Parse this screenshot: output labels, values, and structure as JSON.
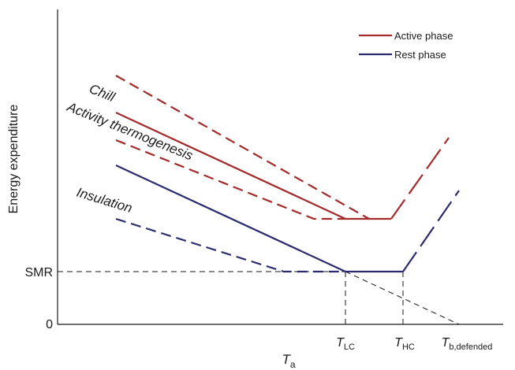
{
  "axes": {
    "ylabel": "Energy expenditure",
    "xlabel_main": "T",
    "xlabel_sub": "a",
    "y_ticks": [
      "SMR",
      "0"
    ],
    "x_ticks": [
      {
        "main": "T",
        "sub": "LC"
      },
      {
        "main": "T",
        "sub": "HC"
      },
      {
        "main": "T",
        "sub": "b,defended"
      }
    ]
  },
  "legend": {
    "items": [
      {
        "label": "Active phase",
        "color": "#a52a2a"
      },
      {
        "label": "Rest phase",
        "color": "#2b2b6e"
      }
    ]
  },
  "annotations": {
    "chill": "Chill",
    "activity": "Activity thermogenesis",
    "insulation": "Insulation"
  },
  "colors": {
    "active": "#a52a2a",
    "rest": "#2b2b6e",
    "axis": "#1a1a1a",
    "guide": "#1a1a1a"
  }
}
